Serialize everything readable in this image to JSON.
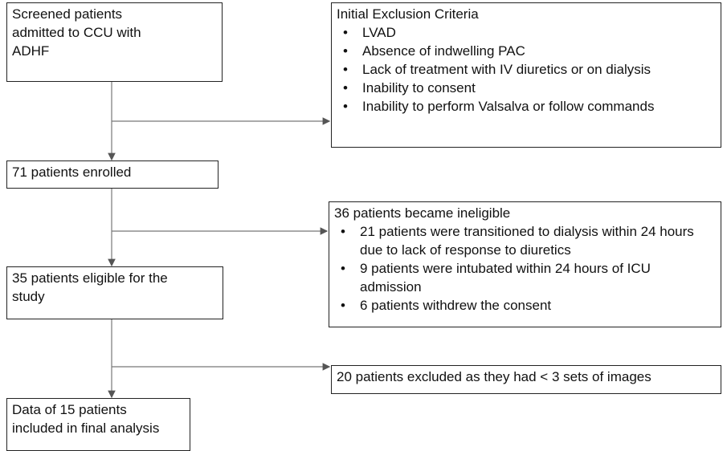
{
  "nodes": [
    {
      "lines": [
        "Screened patients",
        "admitted to CCU with",
        "ADHF"
      ]
    },
    {
      "lines": [
        "71 patients enrolled"
      ]
    },
    {
      "lines": [
        "35 patients eligible for the",
        "study"
      ]
    },
    {
      "lines": [
        "Data of 15 patients",
        "included in final analysis"
      ]
    }
  ],
  "exclusions": [
    {
      "title": "Initial Exclusion Criteria",
      "items": [
        "LVAD",
        "Absence of indwelling PAC",
        "Lack of treatment with IV diuretics or on dialysis",
        "Inability to consent",
        "Inability to perform Valsalva or follow commands"
      ]
    },
    {
      "title": "36 patients became ineligible",
      "items": [
        "21 patients were transitioned to dialysis within 24 hours due to lack of response to diuretics",
        "9 patients were intubated within 24 hours of ICU admission",
        "6 patients withdrew the consent"
      ]
    },
    {
      "title": "20 patients excluded as they had < 3 sets of images",
      "items": []
    }
  ]
}
